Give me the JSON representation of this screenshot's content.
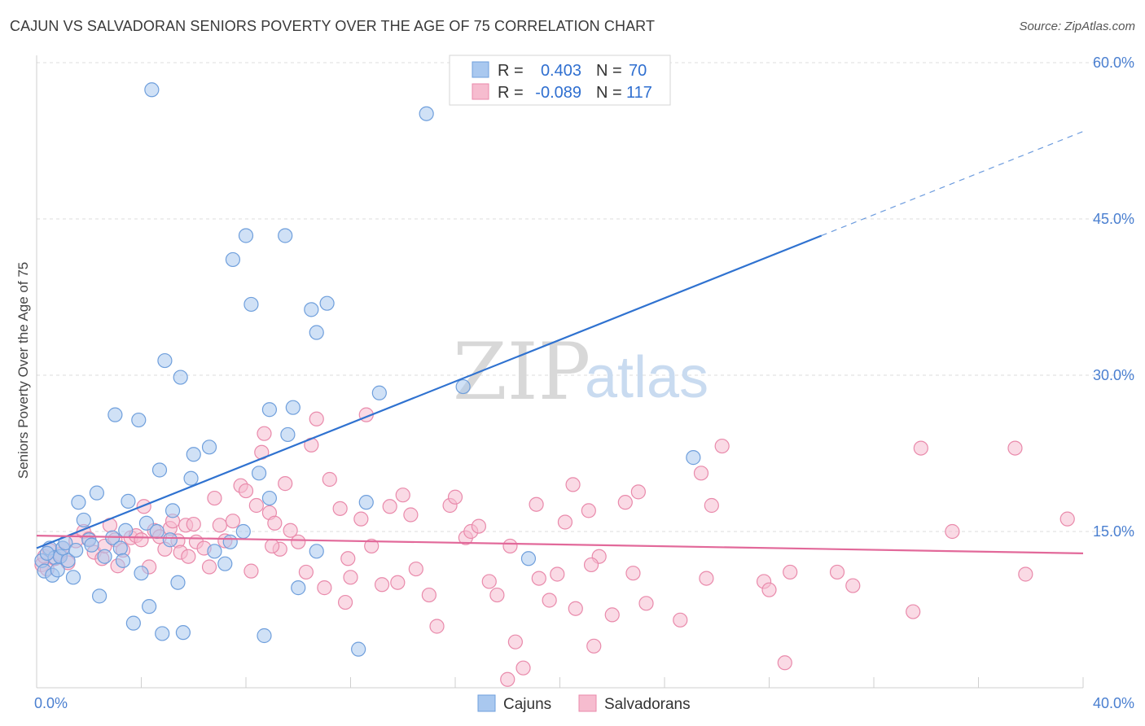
{
  "title": "CAJUN VS SALVADORAN SENIORS POVERTY OVER THE AGE OF 75 CORRELATION CHART",
  "source": "Source: ZipAtlas.com",
  "watermark": {
    "part1": "ZIP",
    "part2": "atlas"
  },
  "legend": {
    "rows": [
      {
        "r_label": "R =",
        "r_value": "0.403",
        "n_label": "N =",
        "n_value": "70"
      },
      {
        "r_label": "R =",
        "r_value": "-0.089",
        "n_label": "N =",
        "n_value": "117"
      }
    ]
  },
  "bottom_legend": {
    "items": [
      "Cajuns",
      "Salvadorans"
    ]
  },
  "colors": {
    "cajun_fill": "#a9c8ef",
    "cajun_stroke": "#6f9fdc",
    "cajun_line": "#2f72d0",
    "salv_fill": "#f6bccf",
    "salv_stroke": "#e98aab",
    "salv_line": "#e2699a",
    "axis_text": "#4a7fd0"
  },
  "chart_data": {
    "type": "scatter",
    "title": "CAJUN VS SALVADORAN SENIORS POVERTY OVER THE AGE OF 75 CORRELATION CHART",
    "xlabel": "",
    "ylabel": "Seniors Poverty Over the Age of 75",
    "xlim": [
      0,
      40
    ],
    "ylim": [
      0,
      60
    ],
    "x_tick_labels": [
      "0.0%",
      "40.0%"
    ],
    "y_ticks": [
      15,
      30,
      45,
      60
    ],
    "y_tick_labels": [
      "15.0%",
      "30.0%",
      "45.0%",
      "60.0%"
    ],
    "grid": true,
    "legend_position": "top-center",
    "series": [
      {
        "name": "Cajuns",
        "r": 0.403,
        "n": 70,
        "trend": {
          "x": [
            0,
            30
          ],
          "y": [
            13.4,
            43.4
          ],
          "dashed_extension_to": [
            40,
            53.4
          ]
        },
        "points": [
          [
            0.2,
            12.2
          ],
          [
            0.3,
            11.2
          ],
          [
            0.5,
            13.4
          ],
          [
            0.6,
            10.8
          ],
          [
            0.7,
            12.5
          ],
          [
            0.8,
            11.3
          ],
          [
            0.9,
            12.6
          ],
          [
            1.0,
            13.4
          ],
          [
            1.1,
            13.9
          ],
          [
            1.2,
            12.2
          ],
          [
            1.4,
            10.6
          ],
          [
            1.5,
            13.2
          ],
          [
            1.6,
            17.8
          ],
          [
            1.8,
            16.1
          ],
          [
            2.0,
            14.2
          ],
          [
            2.1,
            13.7
          ],
          [
            2.3,
            18.7
          ],
          [
            2.4,
            8.8
          ],
          [
            2.6,
            12.6
          ],
          [
            2.9,
            14.4
          ],
          [
            3.0,
            26.2
          ],
          [
            3.2,
            13.4
          ],
          [
            3.3,
            12.2
          ],
          [
            3.4,
            15.1
          ],
          [
            3.5,
            17.9
          ],
          [
            3.7,
            6.2
          ],
          [
            3.9,
            25.7
          ],
          [
            4.0,
            11.0
          ],
          [
            4.2,
            15.8
          ],
          [
            4.3,
            7.8
          ],
          [
            4.4,
            57.4
          ],
          [
            4.6,
            15.0
          ],
          [
            4.7,
            20.9
          ],
          [
            4.8,
            5.2
          ],
          [
            4.9,
            31.4
          ],
          [
            5.1,
            14.2
          ],
          [
            5.2,
            17.0
          ],
          [
            5.4,
            10.1
          ],
          [
            5.5,
            29.8
          ],
          [
            5.6,
            5.3
          ],
          [
            5.9,
            20.1
          ],
          [
            6.0,
            22.4
          ],
          [
            6.6,
            23.1
          ],
          [
            6.8,
            13.1
          ],
          [
            7.2,
            11.9
          ],
          [
            7.4,
            14.0
          ],
          [
            7.5,
            41.1
          ],
          [
            7.9,
            15.0
          ],
          [
            8.0,
            43.4
          ],
          [
            8.2,
            36.8
          ],
          [
            8.5,
            20.6
          ],
          [
            8.7,
            5.0
          ],
          [
            8.9,
            26.7
          ],
          [
            8.9,
            18.2
          ],
          [
            9.5,
            43.4
          ],
          [
            9.6,
            24.3
          ],
          [
            9.8,
            26.9
          ],
          [
            10.0,
            9.6
          ],
          [
            10.5,
            36.3
          ],
          [
            10.7,
            34.1
          ],
          [
            10.7,
            13.1
          ],
          [
            11.1,
            36.9
          ],
          [
            12.3,
            3.7
          ],
          [
            12.6,
            17.8
          ],
          [
            13.1,
            28.3
          ],
          [
            14.9,
            55.1
          ],
          [
            16.3,
            28.9
          ],
          [
            18.8,
            12.4
          ],
          [
            25.1,
            22.1
          ],
          [
            0.4,
            12.9
          ]
        ]
      },
      {
        "name": "Salvadorans",
        "r": -0.089,
        "n": 117,
        "trend": {
          "x": [
            0,
            40
          ],
          "y": [
            14.6,
            12.9
          ]
        },
        "points": [
          [
            0.2,
            11.8
          ],
          [
            0.3,
            12.6
          ],
          [
            0.4,
            11.4
          ],
          [
            0.5,
            13.2
          ],
          [
            0.7,
            12.4
          ],
          [
            0.9,
            12.8
          ],
          [
            1.0,
            13.4
          ],
          [
            1.2,
            12.0
          ],
          [
            1.5,
            14.1
          ],
          [
            1.8,
            15.0
          ],
          [
            2.0,
            14.3
          ],
          [
            2.2,
            13.0
          ],
          [
            2.5,
            12.4
          ],
          [
            2.6,
            13.6
          ],
          [
            2.8,
            15.6
          ],
          [
            3.0,
            14.2
          ],
          [
            3.1,
            11.7
          ],
          [
            3.3,
            13.2
          ],
          [
            3.6,
            14.4
          ],
          [
            3.8,
            14.6
          ],
          [
            4.0,
            14.2
          ],
          [
            4.1,
            17.4
          ],
          [
            4.3,
            11.6
          ],
          [
            4.5,
            15.1
          ],
          [
            4.7,
            14.5
          ],
          [
            4.9,
            13.3
          ],
          [
            5.1,
            15.3
          ],
          [
            5.2,
            16.0
          ],
          [
            5.4,
            14.1
          ],
          [
            5.5,
            13.0
          ],
          [
            5.7,
            15.6
          ],
          [
            5.8,
            12.6
          ],
          [
            6.0,
            15.7
          ],
          [
            6.1,
            14.0
          ],
          [
            6.4,
            13.4
          ],
          [
            6.6,
            11.6
          ],
          [
            6.8,
            18.2
          ],
          [
            7.0,
            15.6
          ],
          [
            7.2,
            14.1
          ],
          [
            7.5,
            16.0
          ],
          [
            7.8,
            19.4
          ],
          [
            8.0,
            18.9
          ],
          [
            8.2,
            11.2
          ],
          [
            8.4,
            17.5
          ],
          [
            8.6,
            22.6
          ],
          [
            8.7,
            24.4
          ],
          [
            8.9,
            16.8
          ],
          [
            9.1,
            15.8
          ],
          [
            9.3,
            13.3
          ],
          [
            9.5,
            19.6
          ],
          [
            9.7,
            15.1
          ],
          [
            10.0,
            14.0
          ],
          [
            10.3,
            11.1
          ],
          [
            10.5,
            23.3
          ],
          [
            10.7,
            25.8
          ],
          [
            11.0,
            9.6
          ],
          [
            11.2,
            20.0
          ],
          [
            11.6,
            17.2
          ],
          [
            11.8,
            8.2
          ],
          [
            11.9,
            12.4
          ],
          [
            12.0,
            10.6
          ],
          [
            12.4,
            16.2
          ],
          [
            12.6,
            26.2
          ],
          [
            12.8,
            13.6
          ],
          [
            13.2,
            9.9
          ],
          [
            13.5,
            17.4
          ],
          [
            13.8,
            10.1
          ],
          [
            14.0,
            18.5
          ],
          [
            14.3,
            16.6
          ],
          [
            14.5,
            11.4
          ],
          [
            15.0,
            8.9
          ],
          [
            15.3,
            5.9
          ],
          [
            15.8,
            17.5
          ],
          [
            16.0,
            18.3
          ],
          [
            16.4,
            14.4
          ],
          [
            16.6,
            15.0
          ],
          [
            16.9,
            15.5
          ],
          [
            17.3,
            10.2
          ],
          [
            17.6,
            8.9
          ],
          [
            18.1,
            13.6
          ],
          [
            18.3,
            4.4
          ],
          [
            18.6,
            1.9
          ],
          [
            19.1,
            17.6
          ],
          [
            19.2,
            10.5
          ],
          [
            19.6,
            8.4
          ],
          [
            19.9,
            10.9
          ],
          [
            20.2,
            15.9
          ],
          [
            20.5,
            19.5
          ],
          [
            20.6,
            7.6
          ],
          [
            21.1,
            17.0
          ],
          [
            21.3,
            4.0
          ],
          [
            21.5,
            12.6
          ],
          [
            22.0,
            7.0
          ],
          [
            22.5,
            17.8
          ],
          [
            22.8,
            11.0
          ],
          [
            23.0,
            18.8
          ],
          [
            23.3,
            8.1
          ],
          [
            24.6,
            6.5
          ],
          [
            25.4,
            20.6
          ],
          [
            25.6,
            10.5
          ],
          [
            25.8,
            17.5
          ],
          [
            26.2,
            23.2
          ],
          [
            27.8,
            10.2
          ],
          [
            28.0,
            9.4
          ],
          [
            28.6,
            2.4
          ],
          [
            28.8,
            11.1
          ],
          [
            30.6,
            11.1
          ],
          [
            31.2,
            9.8
          ],
          [
            33.5,
            7.3
          ],
          [
            33.8,
            23.0
          ],
          [
            35.0,
            15.0
          ],
          [
            37.4,
            23.0
          ],
          [
            37.8,
            10.9
          ],
          [
            39.4,
            16.2
          ],
          [
            21.2,
            11.8
          ],
          [
            18.0,
            0.8
          ],
          [
            9.0,
            13.6
          ]
        ]
      }
    ]
  }
}
